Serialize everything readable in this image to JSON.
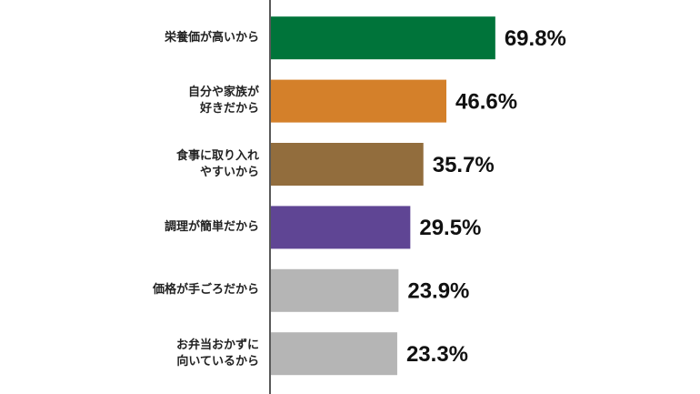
{
  "chart_data": {
    "type": "bar",
    "orientation": "horizontal",
    "categories": [
      "栄養価が高いから",
      "自分や家族が\n好きだから",
      "食事に取り入れ\nやすいから",
      "調理が簡単だから",
      "価格が手ごろだから",
      "お弁当おかずに\n向いているから"
    ],
    "values": [
      69.8,
      46.6,
      35.7,
      29.5,
      23.9,
      23.3
    ],
    "value_labels": [
      "69.8%",
      "46.6%",
      "35.7%",
      "29.5%",
      "23.9%",
      "23.3%"
    ],
    "colors": [
      "#00743a",
      "#d4802a",
      "#926d3d",
      "#5f4594",
      "#b5b5b5",
      "#b5b5b5"
    ],
    "xlim": [
      -36.6,
      80
    ]
  }
}
